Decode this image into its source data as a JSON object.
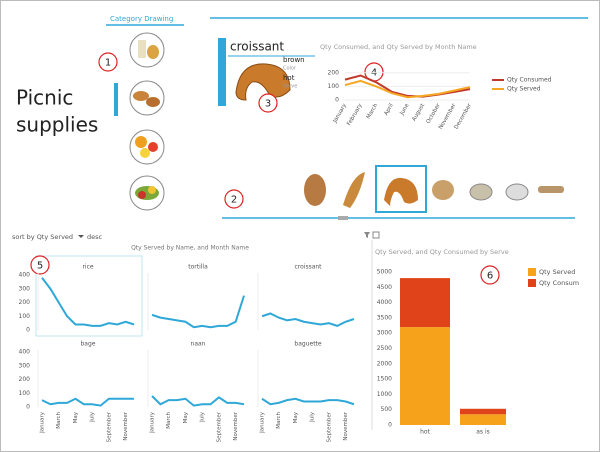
{
  "slicer": {
    "title": "Category Drawing"
  },
  "heading": {
    "line1": "Picnic",
    "line2": "supplies"
  },
  "callouts": [
    1,
    2,
    3,
    4,
    5,
    6
  ],
  "card": {
    "name": "croissant",
    "fields": [
      {
        "value": "brown",
        "label": "Color"
      },
      {
        "value": "hot",
        "label": "Serve"
      }
    ]
  },
  "line_chart": {
    "type": "line",
    "title": "Qty Consumed, and Qty Served by Month Name",
    "categories": [
      "January",
      "February",
      "March",
      "April",
      "June",
      "August",
      "October",
      "November",
      "December"
    ],
    "series": [
      {
        "name": "Qty Consumed",
        "color": "#c0392b",
        "values": [
          150,
          180,
          130,
          60,
          30,
          25,
          40,
          60,
          80
        ]
      },
      {
        "name": "Qty Served",
        "color": "#f5a623",
        "values": [
          110,
          140,
          100,
          50,
          20,
          30,
          45,
          70,
          95
        ]
      }
    ],
    "ylim": [
      0,
      250
    ],
    "yticks": [
      0,
      100,
      200
    ]
  },
  "sort_label": "sort by Qty Served",
  "sort_order": "desc",
  "small_multiples": {
    "type": "line",
    "title": "Qty Served by Name, and Month Name",
    "color": "#2fa8d8",
    "categories": [
      "January",
      null,
      "March",
      null,
      "May",
      null,
      "July",
      null,
      "September",
      null,
      "November",
      null
    ],
    "ylim": [
      0,
      400
    ],
    "yticks": [
      0,
      100,
      200,
      300,
      400
    ],
    "panels": [
      {
        "name": "rice",
        "values": [
          380,
          300,
          200,
          100,
          40,
          40,
          30,
          30,
          50,
          40,
          60,
          40
        ]
      },
      {
        "name": "tortilla",
        "values": [
          110,
          90,
          80,
          70,
          60,
          20,
          30,
          20,
          30,
          30,
          60,
          250
        ]
      },
      {
        "name": "croissant",
        "values": [
          100,
          120,
          90,
          70,
          80,
          60,
          50,
          40,
          50,
          30,
          60,
          80
        ]
      },
      {
        "name": "bage",
        "values": [
          50,
          20,
          30,
          30,
          60,
          20,
          20,
          10,
          60,
          60,
          60,
          60
        ]
      },
      {
        "name": "naan",
        "values": [
          80,
          20,
          50,
          50,
          60,
          10,
          20,
          20,
          70,
          30,
          30,
          20
        ]
      },
      {
        "name": "baguette",
        "values": [
          60,
          20,
          30,
          50,
          60,
          40,
          40,
          40,
          50,
          50,
          40,
          20
        ]
      }
    ]
  },
  "bar_chart": {
    "type": "bar",
    "title": "Qty Served, and Qty Consumed by Serve",
    "stacked": true,
    "categories": [
      "hot",
      "as is"
    ],
    "series": [
      {
        "name": "Qty Served",
        "color": "#f7a21b",
        "values": [
          3200,
          350
        ]
      },
      {
        "name": "Qty Consum",
        "color": "#e0421a",
        "values": [
          1600,
          180
        ]
      }
    ],
    "ylim": [
      0,
      5000
    ],
    "yticks": [
      0,
      500,
      1000,
      1500,
      2000,
      2500,
      3000,
      3500,
      4000,
      4500,
      5000
    ]
  }
}
